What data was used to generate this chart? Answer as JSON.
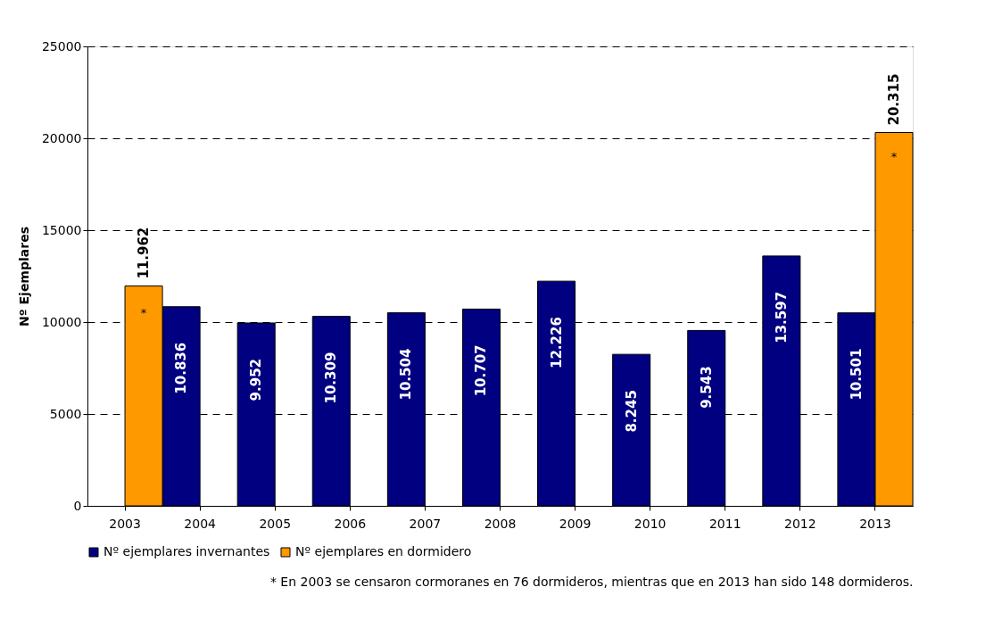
{
  "chart_data": {
    "type": "bar",
    "ylabel": "Nº Ejemplares",
    "categories": [
      "2003",
      "2004",
      "2005",
      "2006",
      "2007",
      "2008",
      "2009",
      "2010",
      "2011",
      "2012",
      "2013"
    ],
    "series": [
      {
        "name": "Nº ejemplares invernantes",
        "color": "#000080",
        "values": [
          null,
          10836,
          9952,
          10309,
          10504,
          10707,
          12226,
          8245,
          9543,
          13597,
          10501
        ],
        "value_labels": [
          null,
          "10.836",
          "9.952",
          "10.309",
          "10.504",
          "10.707",
          "12.226",
          "8.245",
          "9.543",
          "13.597",
          "10.501"
        ]
      },
      {
        "name": "Nº ejemplares en dormidero",
        "color": "#ff9900",
        "values": [
          11962,
          null,
          null,
          null,
          null,
          null,
          null,
          null,
          null,
          null,
          20315
        ],
        "value_labels": [
          "11.962",
          null,
          null,
          null,
          null,
          null,
          null,
          null,
          null,
          null,
          "20.315"
        ]
      }
    ],
    "ylim": [
      0,
      25000
    ],
    "yticks": [
      0,
      5000,
      10000,
      15000,
      20000,
      25000
    ],
    "grid": "y",
    "legend": "bottom",
    "annotations": [
      {
        "text": "*",
        "x": "2003",
        "y": 10500
      },
      {
        "text": "*",
        "x": "2013",
        "y": 19000
      },
      "* En 2003 se censaron cormoranes en 76 dormideros, mientras que en 2013 han sido 148 dormideros."
    ]
  }
}
